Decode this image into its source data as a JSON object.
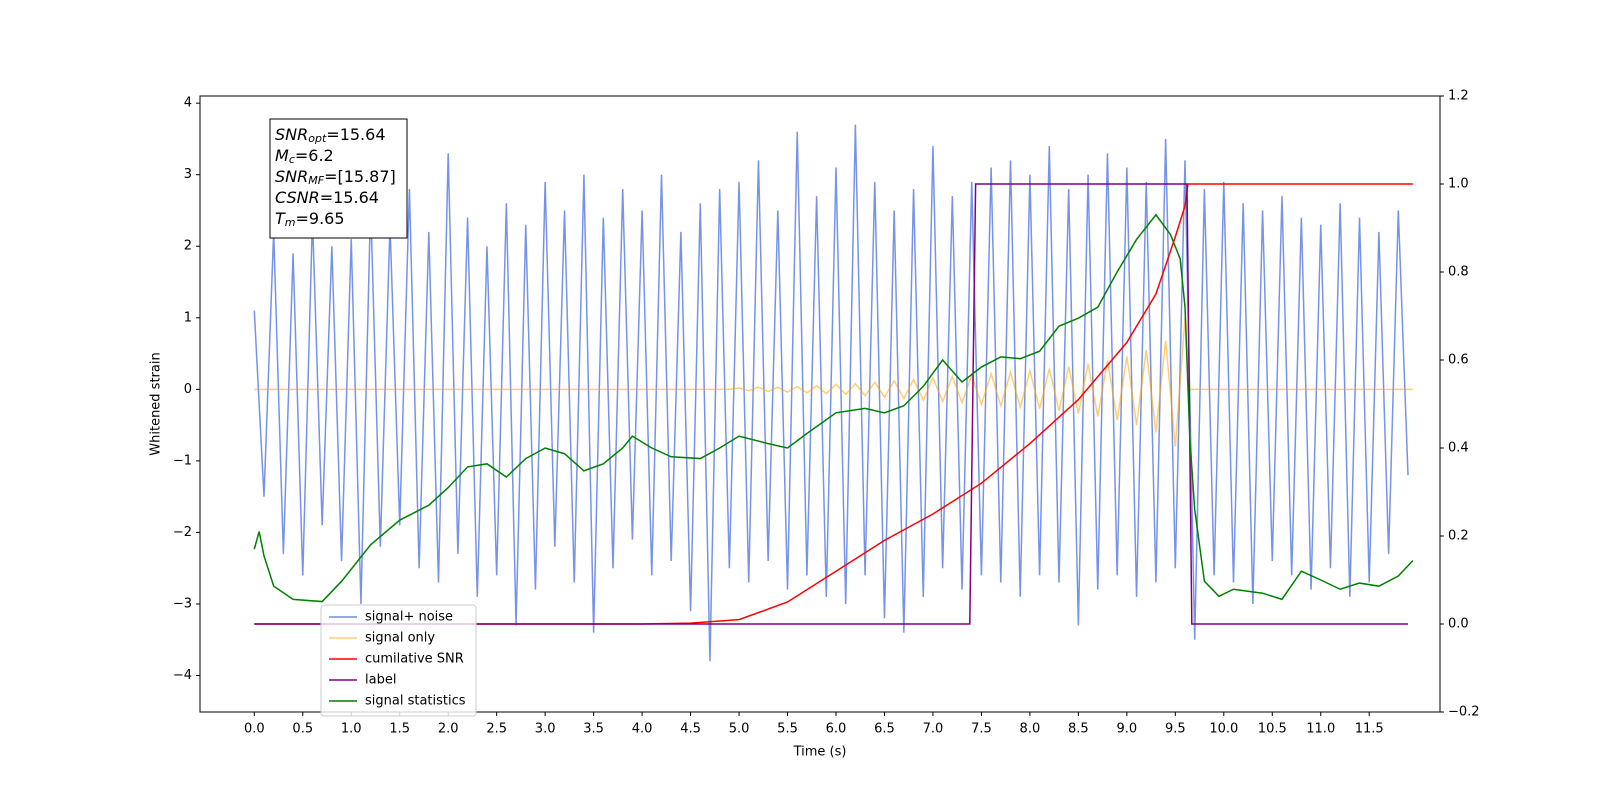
{
  "chart_data": {
    "type": "line",
    "xlabel": "Time (s)",
    "ylabel": "Whitened strain",
    "xlim": [
      -0.56,
      12.23
    ],
    "ylim": [
      -4.51,
      4.1
    ],
    "y2lim": [
      -0.2,
      1.2
    ],
    "xticks": [
      {
        "value": 0,
        "label": "0.0"
      },
      0.5,
      {
        "value": 1,
        "label": "1.0"
      },
      1.5,
      {
        "value": 2,
        "label": "2.0"
      },
      2.5,
      {
        "value": 3,
        "label": "3.0"
      },
      3.5,
      {
        "value": 4,
        "label": "4.0"
      },
      4.5,
      {
        "value": 5,
        "label": "5.0"
      },
      5.5,
      {
        "value": 6,
        "label": "6.0"
      },
      6.5,
      {
        "value": 7,
        "label": "7.0"
      },
      7.5,
      {
        "value": 8,
        "label": "8.0"
      },
      8.5,
      {
        "value": 9,
        "label": "9.0"
      },
      9.5,
      {
        "value": 10,
        "label": "10.0"
      },
      10.5,
      {
        "value": 11,
        "label": "11.0"
      },
      11.5
    ],
    "yticks": [
      {
        "value": -4,
        "label": "−4"
      },
      {
        "value": -3,
        "label": "−3"
      },
      {
        "value": -2,
        "label": "−2"
      },
      {
        "value": -1,
        "label": "−1"
      },
      0,
      1,
      2,
      3,
      4
    ],
    "y2ticks": [
      {
        "value": -0.2,
        "label": "−0.2"
      },
      {
        "value": 0,
        "label": "0.0"
      },
      0.2,
      0.4,
      0.6,
      0.8,
      {
        "value": 1,
        "label": "1.0"
      },
      1.2
    ],
    "legend": "lower left",
    "annotation": [
      {
        "text": "SNR",
        "sub": "opt",
        "rest": "=15.64"
      },
      {
        "text": "M",
        "sub": "c",
        "rest": "=6.2"
      },
      {
        "text": "SNR",
        "sub": "MF",
        "rest": "=[15.87]"
      },
      {
        "text": "CSNR",
        "rest": "=15.64"
      },
      {
        "text": "T",
        "sub": "m",
        "rest": "=9.65"
      }
    ],
    "series": [
      {
        "name": "signal+ noise",
        "color": "#6f8de6",
        "x": [
          0.0,
          0.1,
          0.2,
          0.3,
          0.4,
          0.5,
          0.6,
          0.7,
          0.8,
          0.9,
          1.0,
          1.1,
          1.2,
          1.3,
          1.4,
          1.5,
          1.6,
          1.7,
          1.8,
          1.9,
          2.0,
          2.1,
          2.2,
          2.3,
          2.4,
          2.5,
          2.6,
          2.7,
          2.8,
          2.9,
          3.0,
          3.1,
          3.2,
          3.3,
          3.4,
          3.5,
          3.6,
          3.7,
          3.8,
          3.9,
          4.0,
          4.1,
          4.2,
          4.3,
          4.4,
          4.5,
          4.6,
          4.7,
          4.8,
          4.9,
          5.0,
          5.1,
          5.2,
          5.3,
          5.4,
          5.5,
          5.6,
          5.7,
          5.8,
          5.9,
          6.0,
          6.1,
          6.2,
          6.3,
          6.4,
          6.5,
          6.6,
          6.7,
          6.8,
          6.9,
          7.0,
          7.1,
          7.2,
          7.3,
          7.4,
          7.5,
          7.6,
          7.7,
          7.8,
          7.9,
          8.0,
          8.1,
          8.2,
          8.3,
          8.4,
          8.5,
          8.6,
          8.7,
          8.8,
          8.9,
          9.0,
          9.1,
          9.2,
          9.3,
          9.4,
          9.5,
          9.6,
          9.7,
          9.8,
          9.9,
          10.0,
          10.1,
          10.2,
          10.3,
          10.4,
          10.5,
          10.6,
          10.7,
          10.8,
          10.9,
          11.0,
          11.1,
          11.2,
          11.3,
          11.4,
          11.5,
          11.6,
          11.7,
          11.8,
          11.9
        ],
        "values": [
          1.1,
          -1.5,
          2.2,
          -2.3,
          1.9,
          -2.6,
          2.4,
          -1.9,
          2.0,
          -2.4,
          2.1,
          -3.0,
          2.6,
          -2.2,
          2.3,
          -1.9,
          2.8,
          -2.5,
          2.2,
          -2.7,
          3.3,
          -2.3,
          2.4,
          -2.9,
          2.0,
          -2.6,
          2.6,
          -3.3,
          2.3,
          -2.8,
          2.9,
          -2.2,
          2.5,
          -2.7,
          3.0,
          -3.4,
          2.4,
          -2.5,
          2.8,
          -2.1,
          2.5,
          -2.6,
          3.0,
          -2.4,
          2.2,
          -3.1,
          2.6,
          -3.8,
          2.8,
          -2.5,
          2.9,
          -2.7,
          3.2,
          -2.4,
          2.5,
          -2.8,
          3.6,
          -2.6,
          2.7,
          -2.9,
          3.1,
          -3.0,
          3.7,
          -2.6,
          2.9,
          -3.2,
          2.5,
          -3.4,
          2.8,
          -2.9,
          3.4,
          -2.5,
          2.7,
          -2.8,
          2.9,
          -2.6,
          3.1,
          -2.7,
          3.2,
          -2.9,
          3.0,
          -2.6,
          3.4,
          -2.7,
          2.8,
          -3.3,
          3.0,
          -2.8,
          3.3,
          -2.6,
          3.1,
          -2.9,
          2.9,
          -2.7,
          3.5,
          -2.5,
          3.2,
          -3.5,
          2.8,
          -2.6,
          2.9,
          -2.7,
          2.6,
          -3.0,
          2.5,
          -2.4,
          2.7,
          -2.6,
          2.4,
          -2.8,
          2.3,
          -2.5,
          2.6,
          -2.9,
          2.4,
          -2.7,
          2.2,
          -2.3,
          2.5,
          -1.2
        ]
      },
      {
        "name": "signal only",
        "color": "#ffa500",
        "x": [
          0,
          4.9,
          5.0,
          5.1,
          5.2,
          5.3,
          5.4,
          5.5,
          5.6,
          5.7,
          5.8,
          5.9,
          6.0,
          6.1,
          6.2,
          6.3,
          6.4,
          6.5,
          6.6,
          6.7,
          6.8,
          6.9,
          7.0,
          7.1,
          7.2,
          7.3,
          7.4,
          7.5,
          7.6,
          7.7,
          7.8,
          7.9,
          8.0,
          8.1,
          8.2,
          8.3,
          8.4,
          8.5,
          8.6,
          8.7,
          8.8,
          8.9,
          9.0,
          9.1,
          9.2,
          9.3,
          9.4,
          9.5,
          9.6,
          9.65,
          11.95
        ],
        "values": [
          0,
          0,
          0.02,
          -0.02,
          0.03,
          -0.03,
          0.03,
          -0.04,
          0.04,
          -0.05,
          0.05,
          -0.06,
          0.07,
          -0.07,
          0.08,
          -0.09,
          0.1,
          -0.11,
          0.12,
          -0.13,
          0.14,
          -0.15,
          0.16,
          -0.17,
          0.18,
          -0.19,
          0.2,
          -0.21,
          0.22,
          -0.23,
          0.24,
          -0.25,
          0.26,
          -0.27,
          0.29,
          -0.3,
          0.32,
          -0.34,
          0.36,
          -0.38,
          0.4,
          -0.43,
          0.46,
          -0.5,
          0.55,
          -0.6,
          0.68,
          -0.8,
          1.0,
          0,
          0
        ]
      },
      {
        "name": "cumilative SNR",
        "color": "#ff0000",
        "axis": "y2",
        "x": [
          0,
          4.0,
          4.5,
          5.0,
          5.5,
          6.0,
          6.5,
          7.0,
          7.5,
          8.0,
          8.5,
          9.0,
          9.3,
          9.5,
          9.6,
          9.63,
          11.95
        ],
        "values": [
          0,
          0,
          0.002,
          0.01,
          0.05,
          0.12,
          0.19,
          0.25,
          0.32,
          0.41,
          0.51,
          0.64,
          0.75,
          0.88,
          0.95,
          1.0,
          1.0
        ]
      },
      {
        "name": "label",
        "color": "#800080",
        "axis": "y2",
        "x": [
          0,
          7.38,
          7.44,
          9.62,
          9.67,
          11.9
        ],
        "values": [
          0,
          0,
          1,
          1,
          0,
          0
        ]
      },
      {
        "name": "signal statistics",
        "color": "#008000",
        "axis": "y2",
        "x": [
          0,
          0.05,
          0.1,
          0.2,
          0.4,
          0.7,
          0.9,
          1.2,
          1.5,
          1.8,
          2.0,
          2.2,
          2.4,
          2.6,
          2.8,
          3.0,
          3.2,
          3.4,
          3.6,
          3.8,
          3.9,
          4.1,
          4.3,
          4.6,
          4.8,
          5.0,
          5.3,
          5.5,
          5.7,
          6.0,
          6.3,
          6.5,
          6.7,
          6.9,
          7.1,
          7.3,
          7.5,
          7.7,
          7.9,
          8.1,
          8.3,
          8.5,
          8.7,
          8.9,
          9.1,
          9.3,
          9.45,
          9.55,
          9.6,
          9.65,
          9.7,
          9.8,
          9.95,
          10.1,
          10.4,
          10.6,
          10.8,
          11.0,
          11.2,
          11.4,
          11.6,
          11.8,
          11.95
        ],
        "values": [
          0.17,
          0.21,
          0.155,
          0.086,
          0.056,
          0.051,
          0.097,
          0.18,
          0.236,
          0.27,
          0.31,
          0.357,
          0.364,
          0.334,
          0.376,
          0.4,
          0.387,
          0.348,
          0.364,
          0.4,
          0.427,
          0.4,
          0.38,
          0.376,
          0.4,
          0.427,
          0.41,
          0.4,
          0.433,
          0.48,
          0.49,
          0.48,
          0.496,
          0.54,
          0.6,
          0.55,
          0.584,
          0.607,
          0.603,
          0.62,
          0.677,
          0.695,
          0.72,
          0.8,
          0.874,
          0.93,
          0.885,
          0.83,
          0.72,
          0.42,
          0.26,
          0.097,
          0.063,
          0.079,
          0.07,
          0.056,
          0.12,
          0.1,
          0.079,
          0.093,
          0.086,
          0.109,
          0.144
        ]
      }
    ]
  }
}
